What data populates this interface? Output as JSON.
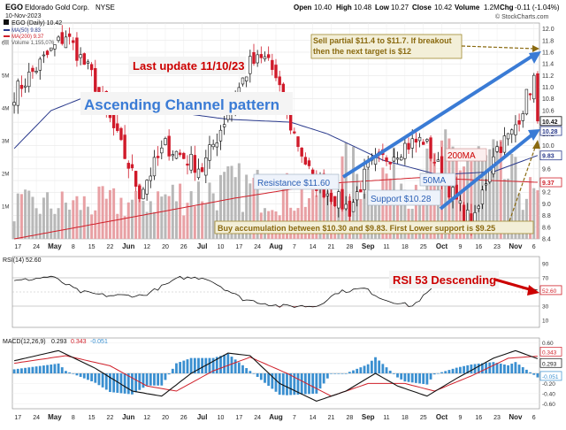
{
  "header": {
    "symbol": "EGO",
    "company": "Eldorado Gold Corp.",
    "exchange": "NYSE",
    "date": "10-Nov-2023",
    "open_label": "Open",
    "open": "10.40",
    "high_label": "High",
    "high": "10.48",
    "low_label": "Low",
    "low": "10.27",
    "close_label": "Close",
    "close": "10.42",
    "volume_label": "Volume",
    "volume": "1.2M",
    "chg_label": "Chg",
    "chg": "-0.11 (-1.04%)",
    "watermark": "© StockCharts.com"
  },
  "legend": {
    "price": "EGO (Daily) 10.42",
    "ma50": "MA(50) 9.83",
    "ma200": "MA(200) 9.37",
    "volume": "Volume 1,155,076"
  },
  "colors": {
    "up": "#111111",
    "down": "#d01a2a",
    "ma50": "#2a3a8c",
    "ma200": "#d0202a",
    "annotation": "#cc0000",
    "channel": "#3a7bd5",
    "target": "#8a6a10",
    "macd_hist": "#3a8fd0",
    "volume": "#b8b8b8",
    "volume_down": "#e8a0a4"
  },
  "annotations": {
    "last_update": "Last update 11/10/23",
    "ascending_channel": "Ascending Channel pattern",
    "sell_partial": "Sell partial $11.4 to $11.7. If breakout then the next target is $12",
    "resistance": "Resistance $11.60",
    "support": "Support $10.28",
    "ma50_label": "50MA",
    "ma200_label": "200MA",
    "buy_accumulation": "Buy accumulation between $10.30 and $9.83. First Lower support is $9.25",
    "rsi_desc": "RSI 53 Descending"
  },
  "rsi": {
    "legend": "RSI(14) 52.60",
    "ticks": [
      "90",
      "70",
      "50",
      "30",
      "10"
    ],
    "current": "52.60"
  },
  "macd": {
    "legend_prefix": "MACD(12,26,9)",
    "macd": "0.293",
    "signal": "0.343",
    "hist": "-0.051",
    "ticks": [
      "0.60",
      "0.40",
      "0.20",
      "0.00",
      "-0.20",
      "-0.40",
      "-0.60"
    ],
    "current_labels": [
      "0.343",
      "0.293",
      "-0.051"
    ]
  },
  "chart_data": {
    "type": "candlestick",
    "title": "EGO Eldorado Gold Corp. NYSE",
    "price_ticks": [
      "12.0",
      "11.8",
      "11.6",
      "11.4",
      "11.2",
      "11.0",
      "10.8",
      "10.6",
      "10.4",
      "10.2",
      "10.0",
      "9.8",
      "9.6",
      "9.4",
      "9.2",
      "9.0",
      "8.8",
      "8.6",
      "8.4"
    ],
    "price_tags": [
      "10.42",
      "10.28",
      "9.83",
      "9.37"
    ],
    "ylim": [
      8.4,
      12.1
    ],
    "volume_ticks": [
      "6M",
      "5M",
      "4M",
      "3M",
      "2M",
      "1M"
    ],
    "x_tick_labels": [
      "17",
      "24",
      "May",
      "8",
      "15",
      "22",
      "Jun",
      "12",
      "20",
      "26",
      "Jul",
      "10",
      "17",
      "24",
      "Aug",
      "7",
      "14",
      "21",
      "28",
      "Sep",
      "11",
      "18",
      "25",
      "Oct",
      "9",
      "16",
      "23",
      "Nov",
      "6"
    ],
    "month_labels": [
      "May",
      "Jun",
      "Jul",
      "Aug",
      "Sep",
      "Oct",
      "Nov"
    ],
    "start_date": "2023-04-14",
    "end_date": "2023-11-10",
    "key_points": [
      {
        "date": "2023-04-14",
        "close": 10.9
      },
      {
        "date": "2023-05-04",
        "close": 11.9
      },
      {
        "date": "2023-05-15",
        "close": 11.2
      },
      {
        "date": "2023-06-01",
        "close": 9.2
      },
      {
        "date": "2023-06-12",
        "close": 10.0
      },
      {
        "date": "2023-06-26",
        "close": 9.6
      },
      {
        "date": "2023-07-13",
        "close": 11.4
      },
      {
        "date": "2023-07-20",
        "close": 11.5
      },
      {
        "date": "2023-07-27",
        "close": 10.5
      },
      {
        "date": "2023-08-07",
        "close": 9.4
      },
      {
        "date": "2023-08-21",
        "close": 8.9
      },
      {
        "date": "2023-08-28",
        "close": 9.6
      },
      {
        "date": "2023-09-11",
        "close": 10.0
      },
      {
        "date": "2023-09-18",
        "close": 10.1
      },
      {
        "date": "2023-10-03",
        "close": 8.8
      },
      {
        "date": "2023-10-06",
        "close": 8.7
      },
      {
        "date": "2023-10-13",
        "close": 9.9
      },
      {
        "date": "2023-10-20",
        "close": 10.2
      },
      {
        "date": "2023-11-01",
        "close": 11.3
      },
      {
        "date": "2023-11-10",
        "close": 10.42
      }
    ],
    "ma50_points": [
      [
        0,
        9.95
      ],
      [
        10,
        10.6
      ],
      [
        22,
        10.9
      ],
      [
        40,
        10.6
      ],
      [
        58,
        10.45
      ],
      [
        75,
        10.4
      ],
      [
        85,
        10.2
      ],
      [
        100,
        9.75
      ],
      [
        115,
        9.5
      ],
      [
        130,
        9.55
      ],
      [
        142,
        9.83
      ]
    ],
    "ma200_points": [
      [
        0,
        8.4
      ],
      [
        30,
        8.75
      ],
      [
        60,
        9.1
      ],
      [
        85,
        9.35
      ],
      [
        110,
        9.45
      ],
      [
        142,
        9.37
      ]
    ],
    "volume_points": [
      [
        0,
        1.0
      ],
      [
        30,
        1.1
      ],
      [
        60,
        1.6
      ],
      [
        80,
        1.3
      ],
      [
        90,
        2.0
      ],
      [
        110,
        1.8
      ],
      [
        120,
        2.5
      ],
      [
        130,
        2.2
      ],
      [
        142,
        1.2
      ]
    ],
    "rsi_points": [
      [
        0,
        65
      ],
      [
        10,
        72
      ],
      [
        18,
        50
      ],
      [
        25,
        45
      ],
      [
        35,
        45
      ],
      [
        45,
        70
      ],
      [
        52,
        70
      ],
      [
        62,
        40
      ],
      [
        72,
        30
      ],
      [
        82,
        30
      ],
      [
        88,
        50
      ],
      [
        95,
        55
      ],
      [
        100,
        40
      ],
      [
        108,
        30
      ],
      [
        115,
        62
      ],
      [
        122,
        58
      ],
      [
        128,
        68
      ],
      [
        135,
        60
      ],
      [
        140,
        55
      ],
      [
        142,
        52.6
      ]
    ],
    "macd_points": [
      [
        0,
        0.25
      ],
      [
        12,
        0.45
      ],
      [
        22,
        0.1
      ],
      [
        32,
        -0.35
      ],
      [
        40,
        -0.45
      ],
      [
        48,
        0.0
      ],
      [
        58,
        0.4
      ],
      [
        64,
        0.35
      ],
      [
        72,
        -0.2
      ],
      [
        82,
        -0.55
      ],
      [
        90,
        -0.35
      ],
      [
        98,
        0.0
      ],
      [
        104,
        -0.25
      ],
      [
        112,
        -0.45
      ],
      [
        120,
        -0.1
      ],
      [
        130,
        0.3
      ],
      [
        136,
        0.45
      ],
      [
        142,
        0.29
      ]
    ],
    "signal_points": [
      [
        0,
        0.2
      ],
      [
        14,
        0.35
      ],
      [
        26,
        0.15
      ],
      [
        36,
        -0.25
      ],
      [
        44,
        -0.35
      ],
      [
        54,
        0.05
      ],
      [
        64,
        0.32
      ],
      [
        74,
        0.0
      ],
      [
        86,
        -0.45
      ],
      [
        96,
        -0.2
      ],
      [
        106,
        -0.2
      ],
      [
        114,
        -0.35
      ],
      [
        124,
        -0.05
      ],
      [
        134,
        0.3
      ],
      [
        142,
        0.34
      ]
    ]
  }
}
